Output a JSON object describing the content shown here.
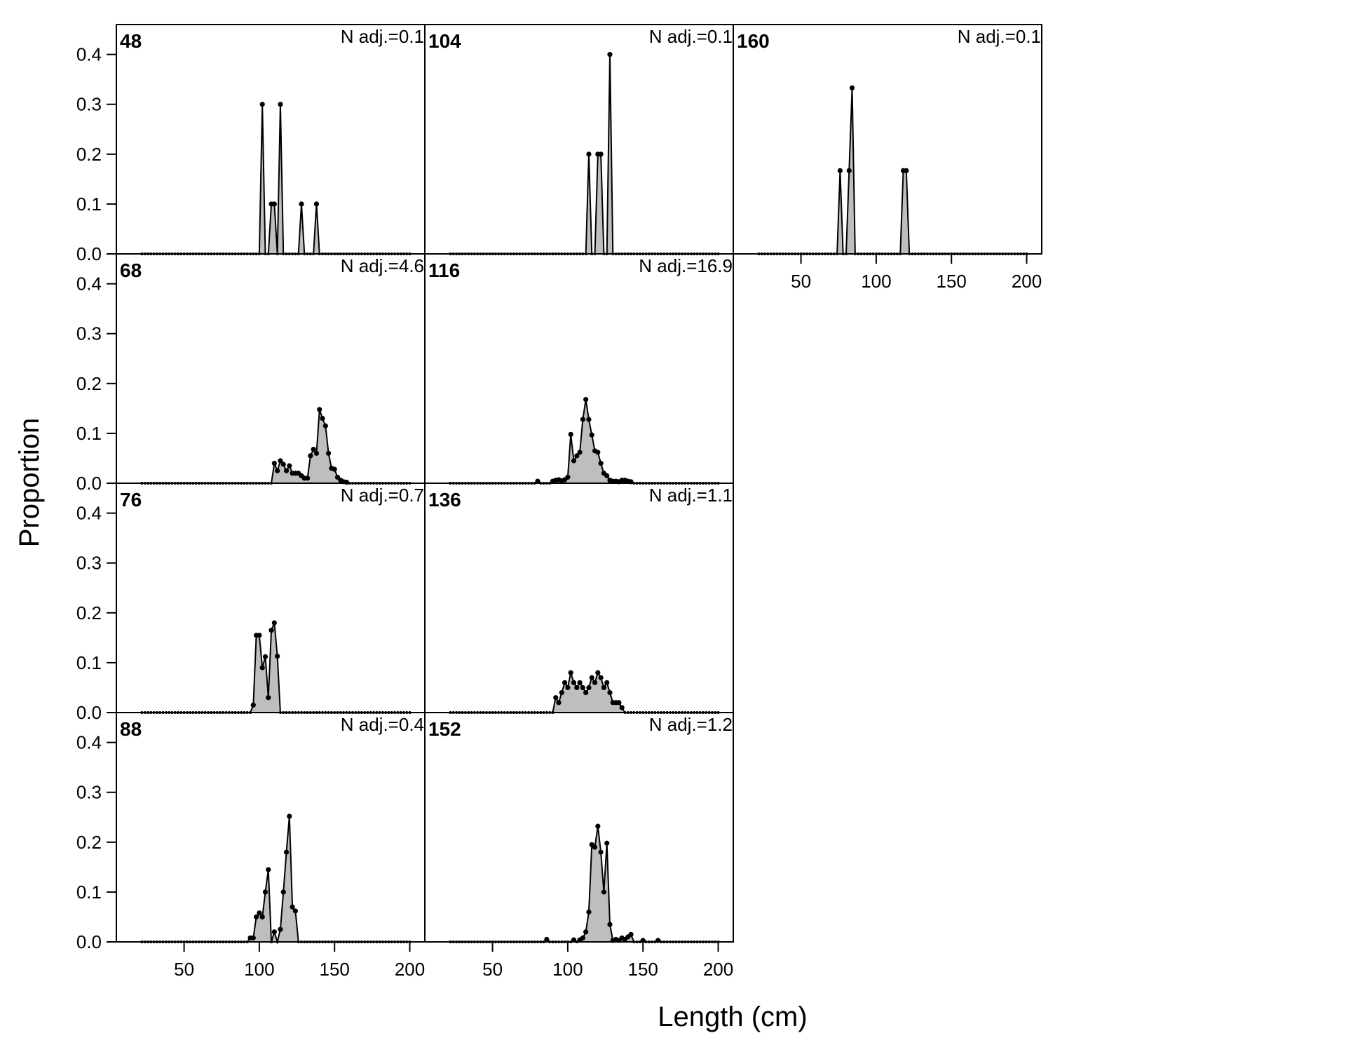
{
  "chart_data": {
    "type": "area",
    "xlabel": "Length (cm)",
    "ylabel": "Proportion",
    "xlim": [
      5,
      210
    ],
    "ylim": [
      0,
      0.46
    ],
    "x_ticks": [
      50,
      100,
      150,
      200
    ],
    "y_ticks": [
      0.0,
      0.1,
      0.2,
      0.3,
      0.4
    ],
    "y_tick_labels": [
      "0.0",
      "0.1",
      "0.2",
      "0.3",
      "0.4"
    ],
    "bin_start": 22,
    "bin_end": 200,
    "bin_width": 2,
    "fill_color": "#bebebe",
    "line_color": "#000000",
    "panels": [
      {
        "label": "48",
        "n_adj": "N adj.=0.1",
        "col": 0,
        "row": 0,
        "points": [
          [
            102,
            0.3
          ],
          [
            108,
            0.1
          ],
          [
            110,
            0.1
          ],
          [
            114,
            0.3
          ],
          [
            128,
            0.1
          ],
          [
            138,
            0.1
          ]
        ]
      },
      {
        "label": "68",
        "n_adj": "N adj.=4.6",
        "col": 0,
        "row": 1,
        "points": [
          [
            110,
            0.04
          ],
          [
            112,
            0.025
          ],
          [
            114,
            0.045
          ],
          [
            116,
            0.038
          ],
          [
            118,
            0.025
          ],
          [
            120,
            0.035
          ],
          [
            122,
            0.02
          ],
          [
            124,
            0.02
          ],
          [
            126,
            0.02
          ],
          [
            128,
            0.015
          ],
          [
            130,
            0.01
          ],
          [
            132,
            0.01
          ],
          [
            134,
            0.055
          ],
          [
            136,
            0.068
          ],
          [
            138,
            0.06
          ],
          [
            140,
            0.148
          ],
          [
            142,
            0.13
          ],
          [
            144,
            0.115
          ],
          [
            146,
            0.06
          ],
          [
            148,
            0.03
          ],
          [
            150,
            0.028
          ],
          [
            152,
            0.012
          ],
          [
            154,
            0.006
          ],
          [
            156,
            0.003
          ],
          [
            158,
            0.002
          ]
        ]
      },
      {
        "label": "76",
        "n_adj": "N adj.=0.7",
        "col": 0,
        "row": 2,
        "points": [
          [
            96,
            0.015
          ],
          [
            98,
            0.155
          ],
          [
            100,
            0.155
          ],
          [
            102,
            0.09
          ],
          [
            104,
            0.112
          ],
          [
            106,
            0.03
          ],
          [
            108,
            0.165
          ],
          [
            110,
            0.18
          ],
          [
            112,
            0.113
          ]
        ]
      },
      {
        "label": "88",
        "n_adj": "N adj.=0.4",
        "col": 0,
        "row": 3,
        "points": [
          [
            94,
            0.008
          ],
          [
            96,
            0.008
          ],
          [
            98,
            0.05
          ],
          [
            100,
            0.058
          ],
          [
            102,
            0.05
          ],
          [
            104,
            0.1
          ],
          [
            106,
            0.145
          ],
          [
            110,
            0.02
          ],
          [
            114,
            0.025
          ],
          [
            116,
            0.1
          ],
          [
            118,
            0.18
          ],
          [
            120,
            0.252
          ],
          [
            122,
            0.07
          ],
          [
            124,
            0.062
          ]
        ]
      },
      {
        "label": "104",
        "n_adj": "N adj.=0.1",
        "col": 1,
        "row": 0,
        "points": [
          [
            114,
            0.2
          ],
          [
            120,
            0.2
          ],
          [
            122,
            0.2
          ],
          [
            128,
            0.4
          ]
        ]
      },
      {
        "label": "116",
        "n_adj": "N adj.=16.9",
        "col": 1,
        "row": 1,
        "points": [
          [
            80,
            0.004
          ],
          [
            90,
            0.004
          ],
          [
            92,
            0.006
          ],
          [
            94,
            0.007
          ],
          [
            96,
            0.005
          ],
          [
            98,
            0.007
          ],
          [
            100,
            0.012
          ],
          [
            102,
            0.098
          ],
          [
            104,
            0.045
          ],
          [
            106,
            0.055
          ],
          [
            108,
            0.062
          ],
          [
            110,
            0.128
          ],
          [
            112,
            0.168
          ],
          [
            114,
            0.128
          ],
          [
            116,
            0.097
          ],
          [
            118,
            0.065
          ],
          [
            120,
            0.062
          ],
          [
            122,
            0.04
          ],
          [
            124,
            0.02
          ],
          [
            126,
            0.015
          ],
          [
            128,
            0.006
          ],
          [
            130,
            0.004
          ],
          [
            132,
            0.004
          ],
          [
            134,
            0.003
          ],
          [
            136,
            0.006
          ],
          [
            138,
            0.006
          ],
          [
            140,
            0.004
          ],
          [
            142,
            0.003
          ]
        ]
      },
      {
        "label": "136",
        "n_adj": "N adj.=1.1",
        "col": 1,
        "row": 2,
        "points": [
          [
            92,
            0.03
          ],
          [
            94,
            0.02
          ],
          [
            96,
            0.04
          ],
          [
            98,
            0.06
          ],
          [
            100,
            0.05
          ],
          [
            102,
            0.08
          ],
          [
            104,
            0.06
          ],
          [
            106,
            0.05
          ],
          [
            108,
            0.06
          ],
          [
            110,
            0.05
          ],
          [
            112,
            0.04
          ],
          [
            114,
            0.05
          ],
          [
            116,
            0.07
          ],
          [
            118,
            0.06
          ],
          [
            120,
            0.08
          ],
          [
            122,
            0.07
          ],
          [
            124,
            0.05
          ],
          [
            126,
            0.06
          ],
          [
            128,
            0.04
          ],
          [
            130,
            0.02
          ],
          [
            132,
            0.02
          ],
          [
            134,
            0.02
          ],
          [
            136,
            0.01
          ]
        ]
      },
      {
        "label": "152",
        "n_adj": "N adj.=1.2",
        "col": 1,
        "row": 3,
        "points": [
          [
            86,
            0.005
          ],
          [
            104,
            0.004
          ],
          [
            108,
            0.004
          ],
          [
            110,
            0.008
          ],
          [
            112,
            0.02
          ],
          [
            114,
            0.06
          ],
          [
            116,
            0.195
          ],
          [
            118,
            0.19
          ],
          [
            120,
            0.232
          ],
          [
            122,
            0.18
          ],
          [
            124,
            0.1
          ],
          [
            126,
            0.198
          ],
          [
            128,
            0.035
          ],
          [
            130,
            0.003
          ],
          [
            132,
            0.005
          ],
          [
            134,
            0.003
          ],
          [
            136,
            0.008
          ],
          [
            138,
            0.005
          ],
          [
            140,
            0.01
          ],
          [
            142,
            0.015
          ],
          [
            150,
            0.003
          ],
          [
            160,
            0.003
          ]
        ]
      },
      {
        "label": "160",
        "n_adj": "N adj.=0.1",
        "col": 2,
        "row": 0,
        "points": [
          [
            76,
            0.167
          ],
          [
            82,
            0.167
          ],
          [
            84,
            0.333
          ],
          [
            118,
            0.167
          ],
          [
            120,
            0.167
          ]
        ]
      }
    ]
  }
}
